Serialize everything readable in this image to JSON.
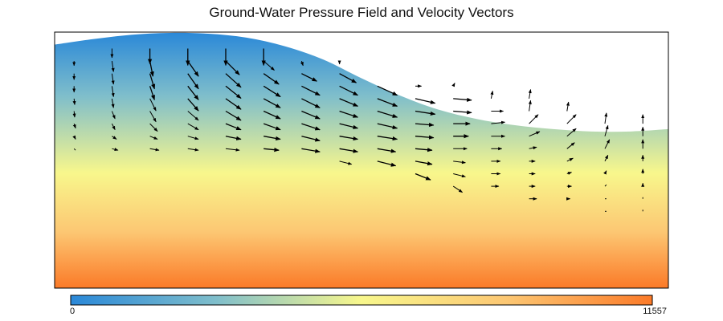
{
  "chart_data": {
    "type": "vector-field",
    "title": "Ground-Water Pressure Field and Velocity Vectors",
    "colorbar": {
      "min_label": "0",
      "max_label": "11557",
      "min": 0,
      "max": 11557,
      "colors": [
        "#2a88d8",
        "#7fbecb",
        "#f8f78c",
        "#fcc773",
        "#fb7a28"
      ]
    },
    "domain": {
      "x_range": [
        0,
        16
      ],
      "depth_range": [
        0,
        13
      ]
    },
    "surface_profile_depth": [
      [
        0,
        0.75
      ],
      [
        1,
        0.4
      ],
      [
        2,
        0.12
      ],
      [
        3,
        0.0
      ],
      [
        4,
        0.05
      ],
      [
        5,
        0.3
      ],
      [
        6,
        0.85
      ],
      [
        7,
        1.7
      ],
      [
        8,
        2.9
      ],
      [
        9,
        4.0
      ],
      [
        10,
        4.9
      ],
      [
        11,
        5.5
      ],
      [
        12,
        5.9
      ],
      [
        13,
        6.15
      ],
      [
        14,
        6.3
      ],
      [
        15,
        6.3
      ],
      [
        16,
        6.15
      ]
    ],
    "vectors": [
      {
        "x": 1,
        "y": 1.8,
        "u": 0,
        "v": -0.15
      },
      {
        "x": 1,
        "y": 2.6,
        "u": 0,
        "v": -0.2
      },
      {
        "x": 1,
        "y": 3.4,
        "u": 0,
        "v": -0.2
      },
      {
        "x": 1,
        "y": 4.2,
        "u": 0.02,
        "v": -0.2
      },
      {
        "x": 1,
        "y": 5.0,
        "u": 0.02,
        "v": -0.2
      },
      {
        "x": 1,
        "y": 5.8,
        "u": 0.05,
        "v": -0.15
      },
      {
        "x": 1,
        "y": 6.6,
        "u": 0.05,
        "v": -0.1
      },
      {
        "x": 1,
        "y": 7.4,
        "u": 0.05,
        "v": -0.05
      },
      {
        "x": 2,
        "y": 1.0,
        "u": 0,
        "v": -0.3
      },
      {
        "x": 2,
        "y": 1.8,
        "u": 0.05,
        "v": -0.35
      },
      {
        "x": 2,
        "y": 2.6,
        "u": 0.05,
        "v": -0.35
      },
      {
        "x": 2,
        "y": 3.4,
        "u": 0.05,
        "v": -0.35
      },
      {
        "x": 2,
        "y": 4.2,
        "u": 0.05,
        "v": -0.3
      },
      {
        "x": 2,
        "y": 5.0,
        "u": 0.1,
        "v": -0.25
      },
      {
        "x": 2,
        "y": 5.8,
        "u": 0.1,
        "v": -0.2
      },
      {
        "x": 2,
        "y": 6.6,
        "u": 0.15,
        "v": -0.1
      },
      {
        "x": 2,
        "y": 7.4,
        "u": 0.2,
        "v": -0.05
      },
      {
        "x": 3,
        "y": 1.0,
        "u": 0,
        "v": -0.5
      },
      {
        "x": 3,
        "y": 1.8,
        "u": 0.1,
        "v": -0.5
      },
      {
        "x": 3,
        "y": 2.6,
        "u": 0.15,
        "v": -0.5
      },
      {
        "x": 3,
        "y": 3.4,
        "u": 0.15,
        "v": -0.45
      },
      {
        "x": 3,
        "y": 4.2,
        "u": 0.2,
        "v": -0.4
      },
      {
        "x": 3,
        "y": 5.0,
        "u": 0.2,
        "v": -0.35
      },
      {
        "x": 3,
        "y": 5.8,
        "u": 0.25,
        "v": -0.25
      },
      {
        "x": 3,
        "y": 6.6,
        "u": 0.25,
        "v": -0.1
      },
      {
        "x": 3,
        "y": 7.4,
        "u": 0.3,
        "v": -0.05
      },
      {
        "x": 4,
        "y": 1.0,
        "u": 0,
        "v": -0.55
      },
      {
        "x": 4,
        "y": 1.8,
        "u": 0.35,
        "v": -0.5
      },
      {
        "x": 4,
        "y": 2.6,
        "u": 0.35,
        "v": -0.5
      },
      {
        "x": 4,
        "y": 3.4,
        "u": 0.35,
        "v": -0.45
      },
      {
        "x": 4,
        "y": 4.2,
        "u": 0.35,
        "v": -0.4
      },
      {
        "x": 4,
        "y": 5.0,
        "u": 0.35,
        "v": -0.3
      },
      {
        "x": 4,
        "y": 5.8,
        "u": 0.35,
        "v": -0.2
      },
      {
        "x": 4,
        "y": 6.6,
        "u": 0.35,
        "v": -0.1
      },
      {
        "x": 4,
        "y": 7.4,
        "u": 0.35,
        "v": -0.05
      },
      {
        "x": 5,
        "y": 1.0,
        "u": 0,
        "v": -0.55
      },
      {
        "x": 5,
        "y": 1.8,
        "u": 0.45,
        "v": -0.45
      },
      {
        "x": 5,
        "y": 2.6,
        "u": 0.5,
        "v": -0.45
      },
      {
        "x": 5,
        "y": 3.4,
        "u": 0.5,
        "v": -0.4
      },
      {
        "x": 5,
        "y": 4.2,
        "u": 0.5,
        "v": -0.35
      },
      {
        "x": 5,
        "y": 5.0,
        "u": 0.5,
        "v": -0.3
      },
      {
        "x": 5,
        "y": 5.8,
        "u": 0.5,
        "v": -0.2
      },
      {
        "x": 5,
        "y": 6.6,
        "u": 0.5,
        "v": -0.1
      },
      {
        "x": 5,
        "y": 7.4,
        "u": 0.45,
        "v": -0.05
      },
      {
        "x": 6,
        "y": 1.0,
        "u": 0,
        "v": -0.55
      },
      {
        "x": 6,
        "y": 1.8,
        "u": 0.35,
        "v": -0.3
      },
      {
        "x": 6,
        "y": 2.6,
        "u": 0.5,
        "v": -0.35
      },
      {
        "x": 6,
        "y": 3.4,
        "u": 0.55,
        "v": -0.35
      },
      {
        "x": 6,
        "y": 4.2,
        "u": 0.55,
        "v": -0.3
      },
      {
        "x": 6,
        "y": 5.0,
        "u": 0.55,
        "v": -0.25
      },
      {
        "x": 6,
        "y": 5.8,
        "u": 0.55,
        "v": -0.2
      },
      {
        "x": 6,
        "y": 6.6,
        "u": 0.55,
        "v": -0.1
      },
      {
        "x": 6,
        "y": 7.4,
        "u": 0.5,
        "v": -0.05
      },
      {
        "x": 7,
        "y": 1.8,
        "u": 0.05,
        "v": -0.15
      },
      {
        "x": 7,
        "y": 2.6,
        "u": 0.5,
        "v": -0.25
      },
      {
        "x": 7,
        "y": 3.4,
        "u": 0.6,
        "v": -0.3
      },
      {
        "x": 7,
        "y": 4.2,
        "u": 0.6,
        "v": -0.3
      },
      {
        "x": 7,
        "y": 5.0,
        "u": 0.6,
        "v": -0.25
      },
      {
        "x": 7,
        "y": 5.8,
        "u": 0.6,
        "v": -0.2
      },
      {
        "x": 7,
        "y": 6.6,
        "u": 0.6,
        "v": -0.15
      },
      {
        "x": 7,
        "y": 7.4,
        "u": 0.6,
        "v": -0.1
      },
      {
        "x": 8,
        "y": 1.8,
        "u": 0,
        "v": -0.1
      },
      {
        "x": 8,
        "y": 2.6,
        "u": 0.55,
        "v": -0.3
      },
      {
        "x": 8,
        "y": 3.4,
        "u": 0.6,
        "v": -0.3
      },
      {
        "x": 8,
        "y": 4.2,
        "u": 0.6,
        "v": -0.25
      },
      {
        "x": 8,
        "y": 5.0,
        "u": 0.6,
        "v": -0.2
      },
      {
        "x": 8,
        "y": 5.8,
        "u": 0.6,
        "v": -0.15
      },
      {
        "x": 8,
        "y": 6.6,
        "u": 0.6,
        "v": -0.1
      },
      {
        "x": 8,
        "y": 7.4,
        "u": 0.6,
        "v": -0.1
      },
      {
        "x": 8,
        "y": 8.2,
        "u": 0.4,
        "v": -0.1
      },
      {
        "x": 9,
        "y": 3.4,
        "u": 0.65,
        "v": -0.3
      },
      {
        "x": 9,
        "y": 4.2,
        "u": 0.65,
        "v": -0.25
      },
      {
        "x": 9,
        "y": 5.0,
        "u": 0.65,
        "v": -0.2
      },
      {
        "x": 9,
        "y": 5.8,
        "u": 0.65,
        "v": -0.15
      },
      {
        "x": 9,
        "y": 6.6,
        "u": 0.65,
        "v": -0.1
      },
      {
        "x": 9,
        "y": 7.4,
        "u": 0.6,
        "v": -0.1
      },
      {
        "x": 9,
        "y": 8.2,
        "u": 0.6,
        "v": -0.15
      },
      {
        "x": 10,
        "y": 3.4,
        "u": 0.2,
        "v": 0
      },
      {
        "x": 10,
        "y": 4.2,
        "u": 0.65,
        "v": -0.15
      },
      {
        "x": 10,
        "y": 5.0,
        "u": 0.65,
        "v": -0.1
      },
      {
        "x": 10,
        "y": 5.8,
        "u": 0.6,
        "v": -0.05
      },
      {
        "x": 10,
        "y": 6.6,
        "u": 0.6,
        "v": -0.05
      },
      {
        "x": 10,
        "y": 7.4,
        "u": 0.55,
        "v": -0.05
      },
      {
        "x": 10,
        "y": 8.2,
        "u": 0.55,
        "v": -0.1
      },
      {
        "x": 10,
        "y": 9.0,
        "u": 0.5,
        "v": -0.2
      },
      {
        "x": 11,
        "y": 3.4,
        "u": 0.05,
        "v": 0.1
      },
      {
        "x": 11,
        "y": 4.2,
        "u": 0.6,
        "v": -0.05
      },
      {
        "x": 11,
        "y": 5.0,
        "u": 0.6,
        "v": -0.05
      },
      {
        "x": 11,
        "y": 5.8,
        "u": 0.55,
        "v": 0
      },
      {
        "x": 11,
        "y": 6.6,
        "u": 0.5,
        "v": 0
      },
      {
        "x": 11,
        "y": 7.4,
        "u": 0.45,
        "v": 0
      },
      {
        "x": 11,
        "y": 8.2,
        "u": 0.4,
        "v": -0.05
      },
      {
        "x": 11,
        "y": 9.0,
        "u": 0.4,
        "v": -0.1
      },
      {
        "x": 11,
        "y": 9.8,
        "u": 0.3,
        "v": -0.2
      },
      {
        "x": 12,
        "y": 4.2,
        "u": 0.05,
        "v": 0.25
      },
      {
        "x": 12,
        "y": 5.0,
        "u": 0.4,
        "v": 0
      },
      {
        "x": 12,
        "y": 5.8,
        "u": 0.45,
        "v": 0.05
      },
      {
        "x": 12,
        "y": 6.6,
        "u": 0.45,
        "v": 0
      },
      {
        "x": 12,
        "y": 7.4,
        "u": 0.35,
        "v": 0
      },
      {
        "x": 12,
        "y": 8.2,
        "u": 0.3,
        "v": 0
      },
      {
        "x": 12,
        "y": 9.0,
        "u": 0.3,
        "v": 0
      },
      {
        "x": 12,
        "y": 9.8,
        "u": 0.25,
        "v": 0
      },
      {
        "x": 13,
        "y": 4.2,
        "u": 0.05,
        "v": 0.3
      },
      {
        "x": 13,
        "y": 5.0,
        "u": 0.05,
        "v": 0.35
      },
      {
        "x": 13,
        "y": 5.8,
        "u": 0.3,
        "v": 0.3
      },
      {
        "x": 13,
        "y": 6.6,
        "u": 0.35,
        "v": 0.15
      },
      {
        "x": 13,
        "y": 7.4,
        "u": 0.25,
        "v": 0.05
      },
      {
        "x": 13,
        "y": 8.2,
        "u": 0.2,
        "v": 0
      },
      {
        "x": 13,
        "y": 9.0,
        "u": 0.2,
        "v": 0
      },
      {
        "x": 13,
        "y": 9.8,
        "u": 0.2,
        "v": 0
      },
      {
        "x": 13,
        "y": 10.6,
        "u": 0.25,
        "v": 0
      },
      {
        "x": 14,
        "y": 5.0,
        "u": 0.05,
        "v": 0.3
      },
      {
        "x": 14,
        "y": 5.8,
        "u": 0.3,
        "v": 0.3
      },
      {
        "x": 14,
        "y": 6.6,
        "u": 0.3,
        "v": 0.25
      },
      {
        "x": 14,
        "y": 7.4,
        "u": 0.25,
        "v": 0.2
      },
      {
        "x": 14,
        "y": 8.2,
        "u": 0.2,
        "v": 0.1
      },
      {
        "x": 14,
        "y": 9.0,
        "u": 0.15,
        "v": 0.05
      },
      {
        "x": 14,
        "y": 9.8,
        "u": 0.15,
        "v": 0
      },
      {
        "x": 14,
        "y": 10.6,
        "u": 0.1,
        "v": 0
      },
      {
        "x": 15,
        "y": 5.8,
        "u": 0.05,
        "v": 0.35
      },
      {
        "x": 15,
        "y": 6.6,
        "u": 0.1,
        "v": 0.35
      },
      {
        "x": 15,
        "y": 7.4,
        "u": 0.15,
        "v": 0.3
      },
      {
        "x": 15,
        "y": 8.2,
        "u": 0.1,
        "v": 0.2
      },
      {
        "x": 15,
        "y": 9.0,
        "u": 0.05,
        "v": 0.1
      },
      {
        "x": 15,
        "y": 9.8,
        "u": 0.05,
        "v": 0.05
      },
      {
        "x": 15,
        "y": 10.6,
        "u": 0.05,
        "v": 0
      },
      {
        "x": 15,
        "y": 11.4,
        "u": 0.05,
        "v": 0
      },
      {
        "x": 16,
        "y": 5.8,
        "u": 0,
        "v": 0.3
      },
      {
        "x": 16,
        "y": 6.6,
        "u": 0,
        "v": 0.3
      },
      {
        "x": 16,
        "y": 7.4,
        "u": 0,
        "v": 0.3
      },
      {
        "x": 16,
        "y": 8.2,
        "u": 0,
        "v": 0.2
      },
      {
        "x": 16,
        "y": 9.0,
        "u": 0,
        "v": 0.15
      },
      {
        "x": 16,
        "y": 9.8,
        "u": 0,
        "v": 0.1
      },
      {
        "x": 16,
        "y": 10.6,
        "u": 0,
        "v": 0.05
      },
      {
        "x": 16,
        "y": 11.4,
        "u": 0,
        "v": 0.05
      }
    ]
  }
}
